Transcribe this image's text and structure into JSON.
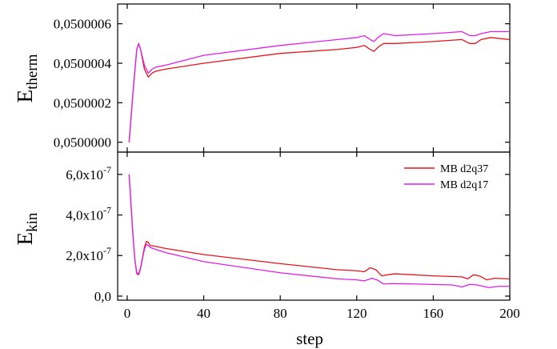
{
  "chart_data": [
    {
      "type": "line",
      "panel": "top",
      "ylabel_main": "E",
      "ylabel_sub": "therm",
      "xlim": [
        -5,
        200
      ],
      "ylim": [
        0.04999995,
        0.0500007
      ],
      "yticks": [
        {
          "value": 0.05,
          "label": "0,0500000"
        },
        {
          "value": 0.0500002,
          "label": "0,0500002"
        },
        {
          "value": 0.0500004,
          "label": "0,0500004"
        },
        {
          "value": 0.0500006,
          "label": "0,0500006"
        }
      ],
      "series": [
        {
          "name": "MB d2q37",
          "color": "#e8141b",
          "points": [
            [
              1,
              0.05
            ],
            [
              3,
              0.05000025
            ],
            [
              5,
              0.05000047
            ],
            [
              6,
              0.0500005
            ],
            [
              7,
              0.05000047
            ],
            [
              9,
              0.05000037
            ],
            [
              11,
              0.05000033
            ],
            [
              13,
              0.05000035
            ],
            [
              15,
              0.05000036
            ],
            [
              20,
              0.05000037
            ],
            [
              40,
              0.0500004
            ],
            [
              80,
              0.05000045
            ],
            [
              110,
              0.05000047
            ],
            [
              120,
              0.05000048
            ],
            [
              124,
              0.05000049
            ],
            [
              127,
              0.05000047
            ],
            [
              129,
              0.05000046
            ],
            [
              131,
              0.05000048
            ],
            [
              134,
              0.0500005
            ],
            [
              140,
              0.0500005
            ],
            [
              160,
              0.05000051
            ],
            [
              175,
              0.05000052
            ],
            [
              179,
              0.0500005
            ],
            [
              182,
              0.0500005
            ],
            [
              185,
              0.05000052
            ],
            [
              190,
              0.05000053
            ],
            [
              200,
              0.05000052
            ]
          ]
        },
        {
          "name": "MB d2q17",
          "color": "#e020e8",
          "points": [
            [
              1,
              0.05
            ],
            [
              3,
              0.05000025
            ],
            [
              5,
              0.05000047
            ],
            [
              6,
              0.0500005
            ],
            [
              7,
              0.05000047
            ],
            [
              9,
              0.05000039
            ],
            [
              11,
              0.05000035
            ],
            [
              13,
              0.05000037
            ],
            [
              15,
              0.05000038
            ],
            [
              20,
              0.05000039
            ],
            [
              40,
              0.05000044
            ],
            [
              80,
              0.05000049
            ],
            [
              110,
              0.05000052
            ],
            [
              120,
              0.05000053
            ],
            [
              124,
              0.05000054
            ],
            [
              127,
              0.05000052
            ],
            [
              129,
              0.05000051
            ],
            [
              131,
              0.05000053
            ],
            [
              134,
              0.05000055
            ],
            [
              140,
              0.05000054
            ],
            [
              160,
              0.05000055
            ],
            [
              175,
              0.05000056
            ],
            [
              179,
              0.05000054
            ],
            [
              182,
              0.05000054
            ],
            [
              185,
              0.05000055
            ],
            [
              190,
              0.05000056
            ],
            [
              200,
              0.05000056
            ]
          ]
        }
      ]
    },
    {
      "type": "line",
      "panel": "bottom",
      "ylabel_main": "E",
      "ylabel_sub": "kin",
      "xlabel": "step",
      "xlim": [
        -5,
        200
      ],
      "ylim": [
        -2e-08,
        7.1e-07
      ],
      "xticks": [
        {
          "value": 0,
          "label": "0"
        },
        {
          "value": 40,
          "label": "40"
        },
        {
          "value": 80,
          "label": "80"
        },
        {
          "value": 120,
          "label": "120"
        },
        {
          "value": 160,
          "label": "160"
        },
        {
          "value": 200,
          "label": "200"
        }
      ],
      "yticks": [
        {
          "value": 0,
          "label": "0,0",
          "exp": ""
        },
        {
          "value": 2e-07,
          "label": "2,0x10",
          "exp": "-7"
        },
        {
          "value": 4e-07,
          "label": "4,0x10",
          "exp": "-7"
        },
        {
          "value": 6e-07,
          "label": "6,0x10",
          "exp": "-7"
        }
      ],
      "legend_position": "top-right",
      "series": [
        {
          "name": "MB d2q37",
          "color": "#e8141b",
          "points": [
            [
              1,
              6e-07
            ],
            [
              2,
              4.5e-07
            ],
            [
              3,
              3e-07
            ],
            [
              4,
              1.8e-07
            ],
            [
              5,
              1.15e-07
            ],
            [
              6,
              1.1e-07
            ],
            [
              7,
              1.4e-07
            ],
            [
              8,
              1.9e-07
            ],
            [
              9,
              2.4e-07
            ],
            [
              10,
              2.7e-07
            ],
            [
              11,
              2.65e-07
            ],
            [
              12,
              2.5e-07
            ],
            [
              15,
              2.45e-07
            ],
            [
              20,
              2.35e-07
            ],
            [
              40,
              2.05e-07
            ],
            [
              80,
              1.6e-07
            ],
            [
              110,
              1.3e-07
            ],
            [
              120,
              1.25e-07
            ],
            [
              124,
              1.2e-07
            ],
            [
              127,
              1.4e-07
            ],
            [
              130,
              1.3e-07
            ],
            [
              133,
              1e-07
            ],
            [
              136,
              1.05e-07
            ],
            [
              140,
              1.1e-07
            ],
            [
              160,
              1e-07
            ],
            [
              175,
              9.5e-08
            ],
            [
              178,
              8.5e-08
            ],
            [
              181,
              1.05e-07
            ],
            [
              184,
              1e-07
            ],
            [
              188,
              8e-08
            ],
            [
              192,
              8.8e-08
            ],
            [
              200,
              8.5e-08
            ]
          ]
        },
        {
          "name": "MB d2q17",
          "color": "#e020e8",
          "points": [
            [
              1,
              6e-07
            ],
            [
              2,
              4.5e-07
            ],
            [
              3,
              3e-07
            ],
            [
              4,
              1.8e-07
            ],
            [
              5,
              1.1e-07
            ],
            [
              6,
              1.05e-07
            ],
            [
              7,
              1.35e-07
            ],
            [
              8,
              1.85e-07
            ],
            [
              9,
              2.3e-07
            ],
            [
              10,
              2.55e-07
            ],
            [
              11,
              2.5e-07
            ],
            [
              12,
              2.4e-07
            ],
            [
              15,
              2.3e-07
            ],
            [
              20,
              2.15e-07
            ],
            [
              40,
              1.7e-07
            ],
            [
              80,
              1.15e-07
            ],
            [
              110,
              8.5e-08
            ],
            [
              120,
              8e-08
            ],
            [
              124,
              7.5e-08
            ],
            [
              128,
              8.8e-08
            ],
            [
              131,
              7.8e-08
            ],
            [
              134,
              6e-08
            ],
            [
              138,
              6.2e-08
            ],
            [
              150,
              6e-08
            ],
            [
              170,
              5.5e-08
            ],
            [
              175,
              4.5e-08
            ],
            [
              179,
              5.8e-08
            ],
            [
              183,
              5.5e-08
            ],
            [
              189,
              4.2e-08
            ],
            [
              194,
              4.8e-08
            ],
            [
              200,
              4.8e-08
            ]
          ]
        }
      ]
    }
  ]
}
